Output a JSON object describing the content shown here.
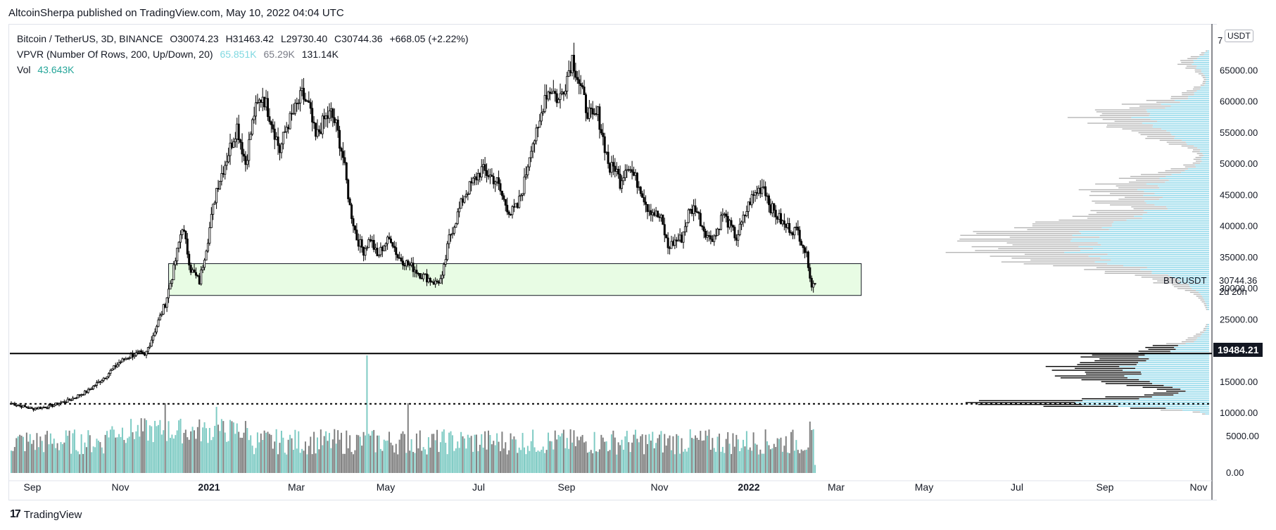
{
  "publisher": "AltcoinSherpa published on TradingView.com, May 10, 2022 04:04 UTC",
  "footer": {
    "brand": "TradingView",
    "logo_icon": "tradingview-logo-icon"
  },
  "legend": {
    "symbol": "Bitcoin / TetherUS, 3D, BINANCE",
    "o": "O30074.23",
    "h": "H31463.42",
    "l": "L29730.40",
    "c": "C30744.36",
    "change": "+668.05 (+2.22%)",
    "vpvr_label": "VPVR (Number Of Rows, 200, Up/Down, 20)",
    "vpvr_up": "65.851K",
    "vpvr_down": "65.29K",
    "vpvr_total": "131.14K",
    "vol_label": "Vol",
    "vol_value": "43.643K"
  },
  "axis": {
    "currency": "USDT",
    "price_top_partial": "7",
    "ticker_tag": "BTCUSDT",
    "last_price": "30744.36",
    "countdown": "2d 20h",
    "level_badge": "19484.21"
  },
  "colors": {
    "up": "#ffffff",
    "down": "#000000",
    "vol_up": "#7fcbc4",
    "vol_down": "#808080",
    "zone_fill": "#e8fce4",
    "vpvr_up": "#8ad6e8",
    "vpvr_down": "#b5b5b5"
  },
  "chart_data": {
    "type": "candlestick",
    "interval": "3D",
    "y_ticks": [
      65000,
      60000,
      55000,
      50000,
      45000,
      40000,
      35000,
      30000,
      25000,
      20000,
      15000,
      10000
    ],
    "y_tick_labels": [
      "65000.00",
      "60000.00",
      "55000.00",
      "50000.00",
      "45000.00",
      "40000.00",
      "35000.00",
      "30000.00",
      "25000.00",
      "20000.00",
      "15000.00",
      "10000.00"
    ],
    "vol_tick_labels": [
      "5000.00",
      "0.00"
    ],
    "x_labels": [
      "Sep",
      "Nov",
      "2021",
      "Mar",
      "May",
      "Jul",
      "Sep",
      "Nov",
      "2022",
      "Mar",
      "May",
      "Jul",
      "Sep",
      "Nov"
    ],
    "ylim": [
      9000,
      70000
    ],
    "support_zone": {
      "low": 28800,
      "high": 33900
    },
    "horizontal_level": 19484.21,
    "dotted_level": 11400,
    "anchors": [
      [
        0,
        11500
      ],
      [
        12,
        10600
      ],
      [
        22,
        11000
      ],
      [
        33,
        11900
      ],
      [
        45,
        13500
      ],
      [
        55,
        15800
      ],
      [
        63,
        18000
      ],
      [
        70,
        19200
      ],
      [
        75,
        19500
      ],
      [
        78,
        19000
      ],
      [
        83,
        22500
      ],
      [
        90,
        27500
      ],
      [
        95,
        33000
      ],
      [
        100,
        40000
      ],
      [
        105,
        33000
      ],
      [
        110,
        31000
      ],
      [
        115,
        38000
      ],
      [
        120,
        46000
      ],
      [
        125,
        50000
      ],
      [
        132,
        56000
      ],
      [
        137,
        50000
      ],
      [
        142,
        58000
      ],
      [
        147,
        61000
      ],
      [
        152,
        57000
      ],
      [
        157,
        52000
      ],
      [
        161,
        56000
      ],
      [
        165,
        58000
      ],
      [
        170,
        61000
      ],
      [
        174,
        59000
      ],
      [
        178,
        54000
      ],
      [
        183,
        57000
      ],
      [
        187,
        58000
      ],
      [
        190,
        56000
      ],
      [
        194,
        51000
      ],
      [
        198,
        43000
      ],
      [
        202,
        38000
      ],
      [
        206,
        36000
      ],
      [
        210,
        38000
      ],
      [
        214,
        35000
      ],
      [
        218,
        37000
      ],
      [
        222,
        38000
      ],
      [
        226,
        35000
      ],
      [
        231,
        34000
      ],
      [
        236,
        33000
      ],
      [
        240,
        32000
      ],
      [
        244,
        31500
      ],
      [
        248,
        30800
      ],
      [
        252,
        31500
      ],
      [
        256,
        38000
      ],
      [
        260,
        41000
      ],
      [
        265,
        45000
      ],
      [
        270,
        47000
      ],
      [
        275,
        49000
      ],
      [
        280,
        48000
      ],
      [
        284,
        47000
      ],
      [
        288,
        44000
      ],
      [
        292,
        42000
      ],
      [
        296,
        43000
      ],
      [
        300,
        47000
      ],
      [
        304,
        53000
      ],
      [
        308,
        55000
      ],
      [
        312,
        61000
      ],
      [
        316,
        62000
      ],
      [
        320,
        60000
      ],
      [
        324,
        63000
      ],
      [
        328,
        67000
      ],
      [
        332,
        63000
      ],
      [
        336,
        59000
      ],
      [
        340,
        57000
      ],
      [
        343,
        58000
      ],
      [
        346,
        54000
      ],
      [
        350,
        49000
      ],
      [
        353,
        49500
      ],
      [
        356,
        47000
      ],
      [
        360,
        50000
      ],
      [
        364,
        48000
      ],
      [
        368,
        46000
      ],
      [
        372,
        43000
      ],
      [
        376,
        42000
      ],
      [
        380,
        41000
      ],
      [
        384,
        36500
      ],
      [
        388,
        37500
      ],
      [
        392,
        38000
      ],
      [
        396,
        42000
      ],
      [
        400,
        43000
      ],
      [
        404,
        40000
      ],
      [
        408,
        38000
      ],
      [
        412,
        38500
      ],
      [
        416,
        42000
      ],
      [
        420,
        40000
      ],
      [
        424,
        38000
      ],
      [
        428,
        41000
      ],
      [
        432,
        44000
      ],
      [
        436,
        45500
      ],
      [
        440,
        46500
      ],
      [
        444,
        43000
      ],
      [
        448,
        41500
      ],
      [
        452,
        40000
      ],
      [
        456,
        39500
      ],
      [
        460,
        39000
      ],
      [
        463,
        37000
      ],
      [
        466,
        34000
      ],
      [
        468,
        30500
      ],
      [
        470,
        30744
      ]
    ],
    "volume_spikes": [
      {
        "index": 90,
        "volume": 9500
      },
      {
        "index": 208,
        "volume": 16000
      },
      {
        "index": 232,
        "volume": 9500
      },
      {
        "index": 120,
        "volume": 9000
      },
      {
        "index": 467,
        "volume": 7000
      }
    ]
  }
}
